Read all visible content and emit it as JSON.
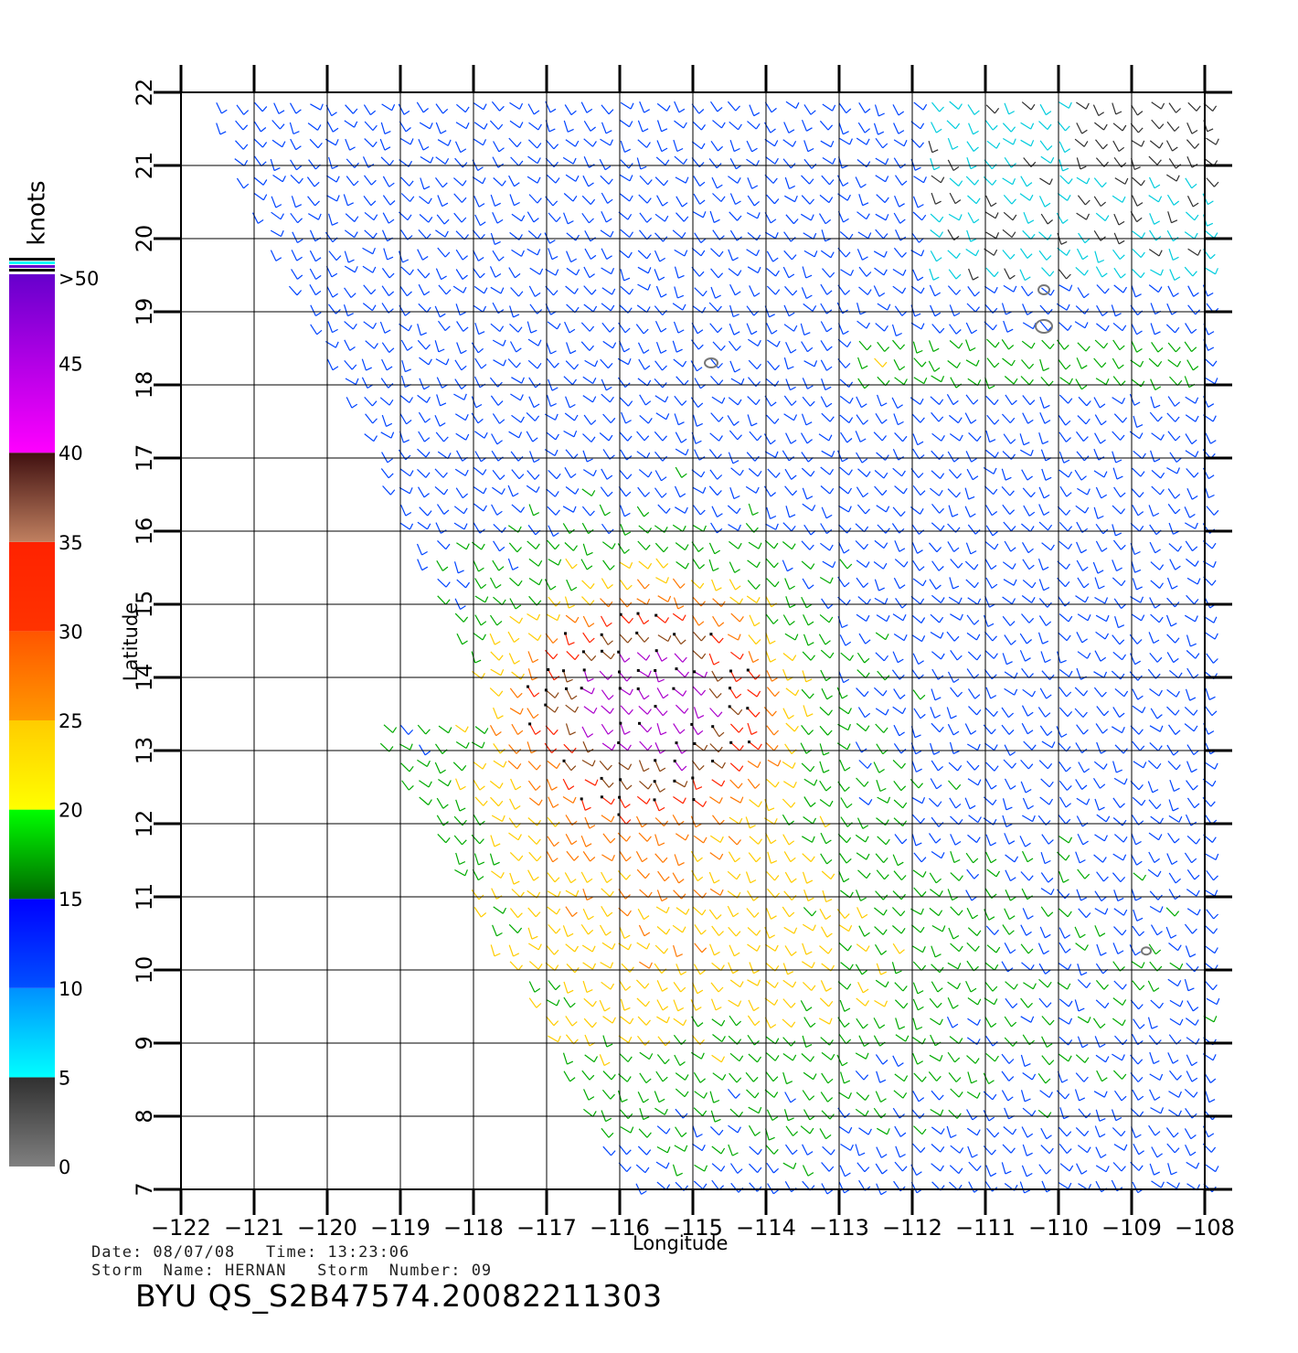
{
  "map": {
    "lon_ticks": [
      "-122",
      "-121",
      "-120",
      "-119",
      "-118",
      "-117",
      "-116",
      "-115",
      "-114",
      "-113",
      "-112",
      "-111",
      "-110",
      "-109",
      "-108"
    ],
    "lat_ticks": [
      "7",
      "8",
      "9",
      "10",
      "11",
      "12",
      "13",
      "14",
      "15",
      "16",
      "17",
      "18",
      "19",
      "20",
      "21",
      "22"
    ],
    "lon_range": [
      -122,
      -108
    ],
    "lat_range": [
      7,
      22
    ],
    "x_label": "Longitude",
    "y_label": "Latitude"
  },
  "colorbar": {
    "unit": "knots",
    "labels": [
      ">50",
      "45",
      "40",
      "35",
      "30",
      "25",
      "20",
      "15",
      "10",
      "5",
      "0"
    ],
    "bands": [
      {
        "from": 0,
        "to": 5,
        "colors": [
          "#808080",
          "#303030"
        ]
      },
      {
        "from": 5,
        "to": 10,
        "colors": [
          "#00ffff",
          "#0090ff"
        ]
      },
      {
        "from": 10,
        "to": 15,
        "colors": [
          "#0050ff",
          "#0000ff"
        ]
      },
      {
        "from": 15,
        "to": 20,
        "colors": [
          "#006600",
          "#00ff00"
        ]
      },
      {
        "from": 20,
        "to": 25,
        "colors": [
          "#ffff00",
          "#ffcc00"
        ]
      },
      {
        "from": 25,
        "to": 30,
        "colors": [
          "#ff9900",
          "#ff5500"
        ]
      },
      {
        "from": 30,
        "to": 35,
        "colors": [
          "#ff3300",
          "#ff2200"
        ]
      },
      {
        "from": 35,
        "to": 40,
        "colors": [
          "#c08060",
          "#401010"
        ]
      },
      {
        "from": 40,
        "to": 50,
        "colors": [
          "#ff00ff",
          "#6600cc"
        ]
      }
    ]
  },
  "footer": {
    "date_line": "Date: 08/07/08   Time: 13:23:06",
    "storm_line": "Storm  Name: HERNAN   Storm  Number: 09",
    "product_id": "BYU  QS_S2B47574.20082211303"
  },
  "colors": {
    "calm": "#303030",
    "cyan": "#00ccdd",
    "blue": "#0044ff",
    "green": "#00aa00",
    "yellow": "#ffcc00",
    "orange": "#ff7700",
    "red": "#ff2200",
    "brown": "#8b4513",
    "magenta": "#aa00cc"
  }
}
